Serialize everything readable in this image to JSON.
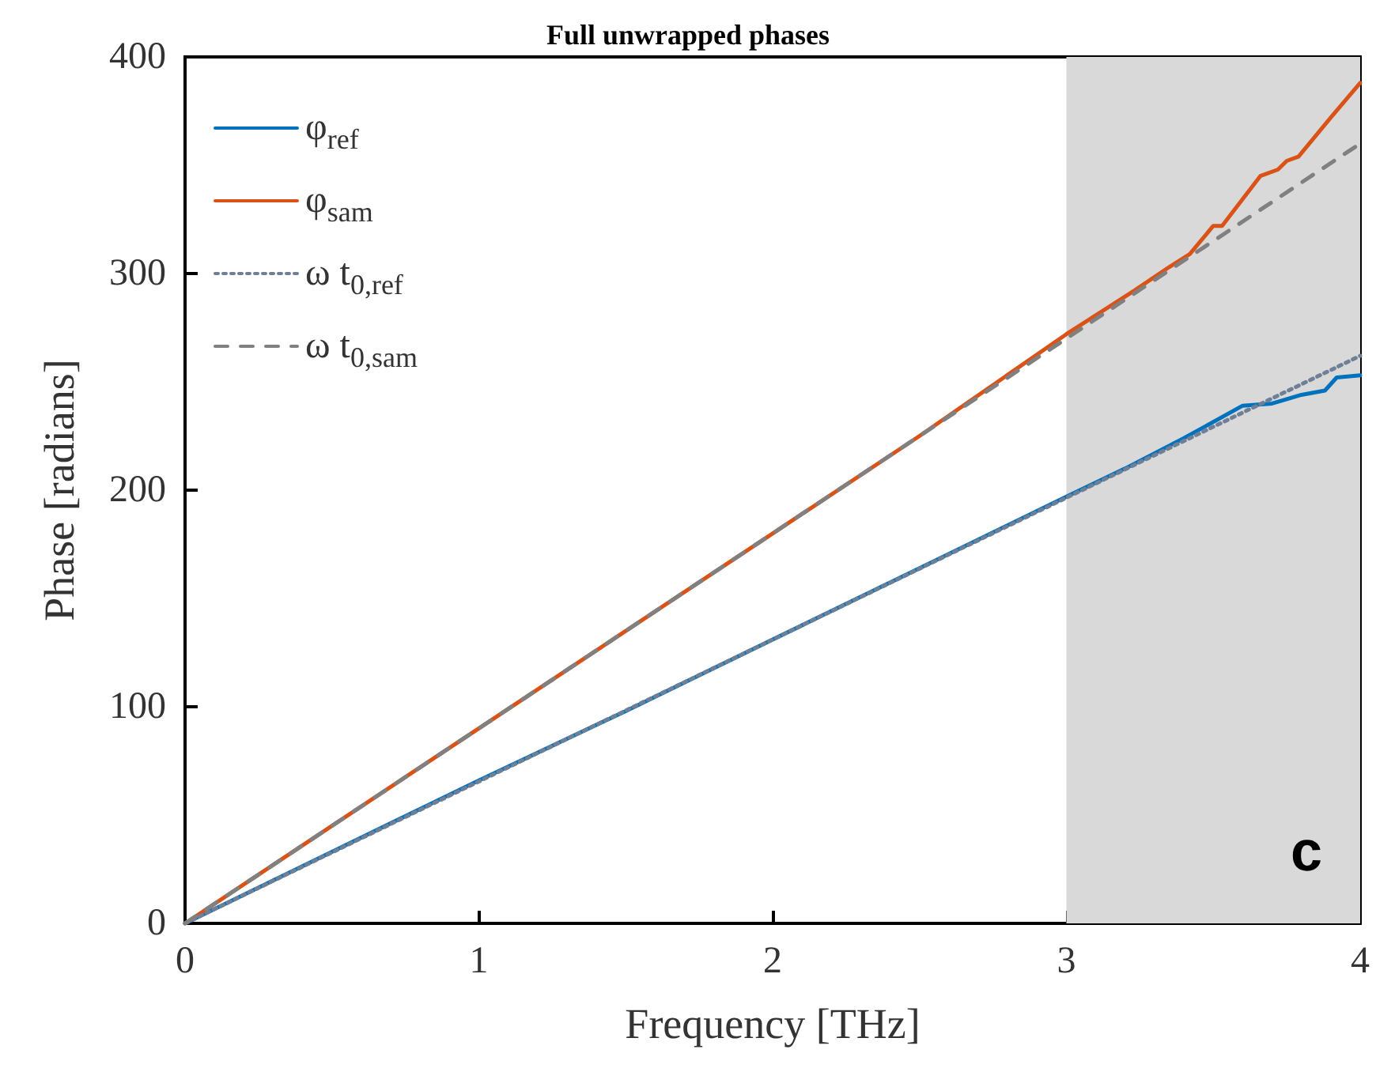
{
  "chart_data": {
    "type": "line",
    "title": "Full unwrapped phases",
    "xlabel": "Frequency [THz]",
    "ylabel": "Phase [radians]",
    "xlim": [
      0,
      4
    ],
    "xticks": [
      0,
      1,
      2,
      3,
      4
    ],
    "ylim": [
      0,
      400
    ],
    "yticks": [
      0,
      100,
      200,
      300,
      400
    ],
    "grid": false,
    "legend": "top left",
    "marker": "none",
    "series": [
      {
        "name": "φ$_{ref}$",
        "color": "#0072bd",
        "line_style": "solid",
        "x": [
          0,
          0.5,
          1,
          1.5,
          2,
          2.5,
          3,
          3.2,
          3.4,
          3.6,
          3.7,
          3.8,
          3.88,
          3.92,
          4
        ],
        "values": [
          0,
          33,
          66,
          98,
          131,
          164,
          197,
          210,
          224,
          239,
          240,
          244,
          246,
          252,
          253
        ]
      },
      {
        "name": "φ$_{sam}$",
        "color": "#d95319",
        "line_style": "solid",
        "x": [
          0,
          0.5,
          1,
          1.5,
          2,
          2.5,
          3,
          3.23,
          3.35,
          3.42,
          3.5,
          3.53,
          3.66,
          3.72,
          3.75,
          3.79,
          3.9,
          4
        ],
        "values": [
          0,
          45,
          90,
          135,
          180,
          225,
          272,
          292,
          303,
          309,
          322,
          322,
          345,
          348,
          352,
          354,
          372,
          388
        ]
      },
      {
        "name": "ω t$_{0,ref}$",
        "color": "#6f7f95",
        "line_style": "dotted",
        "x": [
          0,
          4
        ],
        "values": [
          0,
          262
        ]
      },
      {
        "name": "ω t$_{0,sam}$",
        "color": "#808080",
        "line_style": "dashed",
        "x": [
          0,
          4
        ],
        "values": [
          0,
          360
        ]
      }
    ],
    "bands": [
      {
        "axis": "x",
        "from": 3,
        "to": 4,
        "color": "#d9d9d9"
      }
    ],
    "annotations": [
      "c"
    ]
  }
}
